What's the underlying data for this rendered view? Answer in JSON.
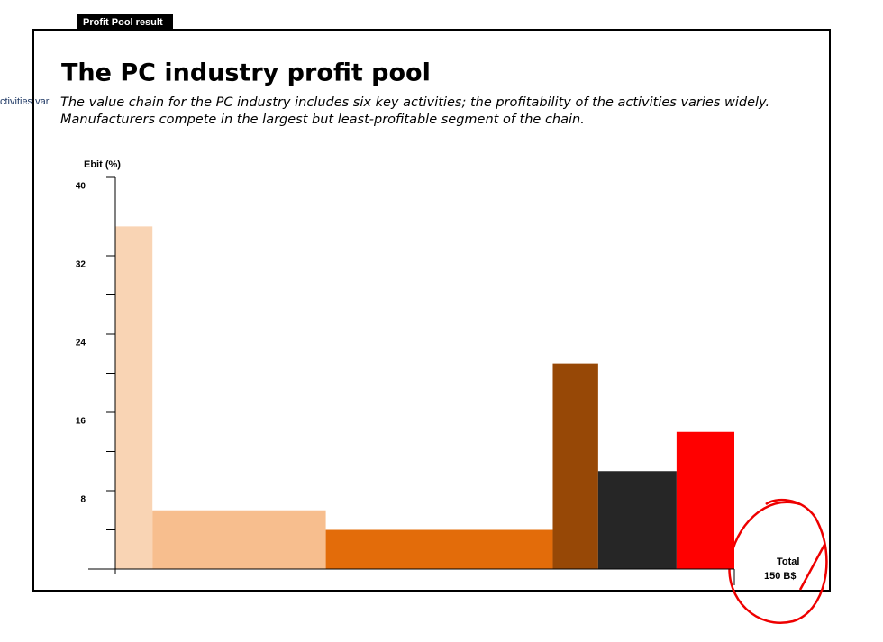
{
  "tab_label": "Profit Pool result",
  "side_text": "ctivities var",
  "chart_data": {
    "type": "profit-pool",
    "title": "The PC industry profit pool",
    "subtitle": [
      "The value chain for the PC industry includes six key activities; the profitability of the activities varies widely.",
      "Manufacturers compete in the largest but least-profitable segment of the chain."
    ],
    "y_label": "Ebit (%)",
    "x_label": "Total",
    "values": [
      35,
      6,
      4,
      21,
      10,
      14
    ],
    "widths": [
      9,
      42,
      55,
      11,
      19,
      14
    ],
    "colors": [
      "#f9d4b4",
      "#f7be8e",
      "#e36c0a",
      "#974806",
      "#262626",
      "#ff0000"
    ],
    "ylim": [
      0,
      40
    ],
    "yticks": [
      8,
      16,
      24,
      32,
      40
    ],
    "minor_yticks": [
      4,
      12,
      20,
      28
    ],
    "xlim": [
      0,
      150
    ],
    "xticks": [
      {
        "value": 150,
        "label": "150  B$"
      }
    ]
  }
}
